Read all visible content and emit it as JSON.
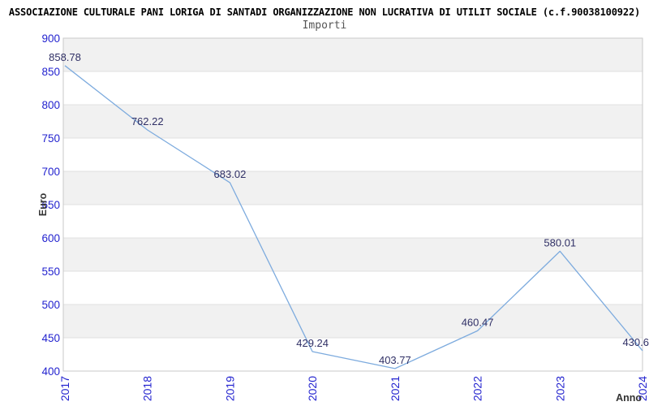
{
  "chart_data": {
    "type": "line",
    "title": "ASSOCIAZIONE CULTURALE PANI LORIGA DI SANTADI ORGANIZZAZIONE NON LUCRATIVA DI UTILIT SOCIALE (c.f.90038100922)",
    "subtitle": "Importi",
    "xlabel": "Anno",
    "ylabel": "Euro",
    "categories": [
      "2017",
      "2018",
      "2019",
      "2020",
      "2021",
      "2022",
      "2023",
      "2024"
    ],
    "values": [
      858.78,
      762.22,
      683.02,
      429.24,
      403.77,
      460.47,
      580.01,
      430.6
    ],
    "point_labels": [
      "858.78",
      "762.22",
      "683.02",
      "429.24",
      "403.77",
      "460.47",
      "580.01",
      "430.6"
    ],
    "ylim": [
      400,
      900
    ],
    "yticks": [
      400,
      450,
      500,
      550,
      600,
      650,
      700,
      750,
      800,
      850,
      900
    ],
    "grid": "horizontal alternating gray/white bands every 50, gray starts at top (900-850)",
    "legend": "none",
    "x_tick_rotation": -90,
    "colors": {
      "line": "#7dabde",
      "tick_label": "#2323cf",
      "point_label": "#303066",
      "band_fill": "#f1f1f1",
      "gridline": "#e0e0e0",
      "plot_border": "#c9c9c9",
      "plot_background": "#ffffff",
      "title": "#000000",
      "subtitle": "#555555",
      "axis_title": "#333333"
    }
  }
}
